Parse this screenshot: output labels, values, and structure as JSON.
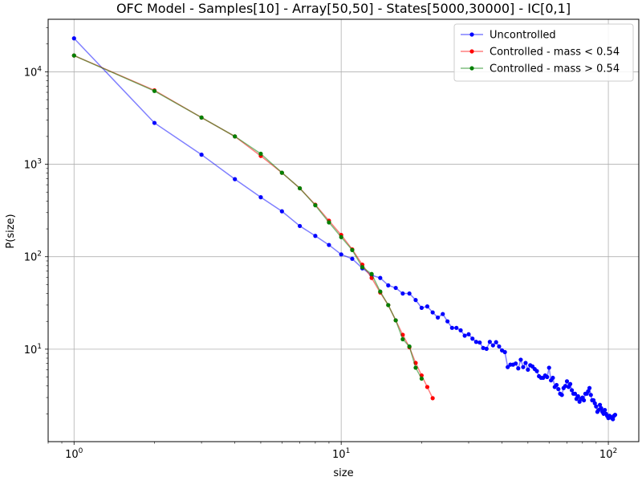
{
  "chart_data": {
    "type": "line",
    "title": "OFC Model - Samples[10] - Array[50,50] - States[5000,30000] - IC[0,1]",
    "xlabel": "size",
    "ylabel": "P(size)",
    "xscale": "log",
    "yscale": "log",
    "xlim": [
      0.8,
      130
    ],
    "ylim": [
      1.0,
      37000
    ],
    "grid": true,
    "legend_position": "top-right",
    "x_ticks": [
      {
        "base": "10",
        "exp": "0",
        "value": 1
      },
      {
        "base": "10",
        "exp": "1",
        "value": 10
      },
      {
        "base": "10",
        "exp": "2",
        "value": 100
      }
    ],
    "y_ticks": [
      {
        "base": "10",
        "exp": "1",
        "value": 10
      },
      {
        "base": "10",
        "exp": "2",
        "value": 100
      },
      {
        "base": "10",
        "exp": "3",
        "value": 1000
      },
      {
        "base": "10",
        "exp": "4",
        "value": 10000
      }
    ],
    "series": [
      {
        "name": "Uncontrolled",
        "color": "#0000ff",
        "x": [
          1,
          2,
          3,
          4,
          5,
          6,
          7,
          8,
          9,
          10,
          11,
          12,
          13,
          14,
          15,
          16,
          17,
          18,
          19,
          20,
          21,
          22,
          23,
          24,
          25,
          26,
          27,
          28,
          29,
          30,
          31,
          32,
          33,
          34,
          35,
          36,
          37,
          38,
          39,
          40,
          41,
          42,
          43,
          44,
          45,
          46,
          47,
          48,
          49,
          50,
          51,
          52,
          53,
          54,
          55,
          56,
          57,
          58,
          59,
          60,
          61,
          62,
          63,
          64,
          65,
          66,
          67,
          68,
          69,
          70,
          71,
          72,
          73,
          74,
          75,
          76,
          77,
          78,
          79,
          80,
          81,
          82,
          83,
          84,
          85,
          86,
          87,
          88,
          89,
          90,
          91,
          92,
          93,
          94,
          95,
          96,
          97,
          98,
          99,
          100,
          101,
          102,
          103,
          104,
          105,
          106
        ],
        "y": [
          23000,
          2800,
          1270,
          690,
          440,
          310,
          215,
          168,
          134,
          106,
          95,
          75,
          63,
          59,
          49,
          46,
          40,
          40,
          34,
          28,
          29,
          25,
          22,
          24,
          20,
          17,
          17,
          16,
          14,
          14.5,
          13,
          12,
          11.8,
          10.3,
          10.1,
          12,
          11,
          11.9,
          10.7,
          9.7,
          9.3,
          6.4,
          6.8,
          6.8,
          7.0,
          6.2,
          7.7,
          6.4,
          7.1,
          6.0,
          6.7,
          6.5,
          6.1,
          5.8,
          5.1,
          4.9,
          4.9,
          5.2,
          5.0,
          6.3,
          4.6,
          4.9,
          3.9,
          4.1,
          3.7,
          3.3,
          3.2,
          3.8,
          4.0,
          4.5,
          3.9,
          4.2,
          3.6,
          3.3,
          3.3,
          2.9,
          3.1,
          2.7,
          2.9,
          3.0,
          2.8,
          3.3,
          3.3,
          3.5,
          3.8,
          3.2,
          2.8,
          2.8,
          2.6,
          2.4,
          2.1,
          2.2,
          2.5,
          2.3,
          2.1,
          2.0,
          2.2,
          2.0,
          1.9,
          1.8,
          1.9,
          1.85,
          1.8,
          1.75,
          1.9,
          1.95
        ]
      },
      {
        "name": "Controlled - mass < 0.54",
        "color": "#ff0000",
        "x": [
          1,
          2,
          3,
          4,
          5,
          6,
          7,
          8,
          9,
          10,
          11,
          12,
          13,
          14,
          15,
          16,
          17,
          18,
          19,
          20,
          21,
          22
        ],
        "y": [
          15000,
          6300,
          3200,
          2000,
          1230,
          810,
          550,
          365,
          245,
          172,
          120,
          82,
          59,
          41,
          30,
          20.5,
          14.3,
          10.5,
          7.1,
          5.2,
          3.9,
          2.95
        ]
      },
      {
        "name": "Controlled - mass > 0.54",
        "color": "#008000",
        "x": [
          1,
          2,
          3,
          4,
          5,
          6,
          7,
          8,
          9,
          10,
          11,
          12,
          13,
          14,
          15,
          16,
          17,
          18,
          19,
          20
        ],
        "y": [
          15000,
          6200,
          3200,
          2000,
          1300,
          810,
          550,
          360,
          235,
          163,
          118,
          77,
          65,
          42,
          30,
          20.5,
          12.8,
          10.7,
          6.3,
          4.8
        ]
      }
    ]
  }
}
